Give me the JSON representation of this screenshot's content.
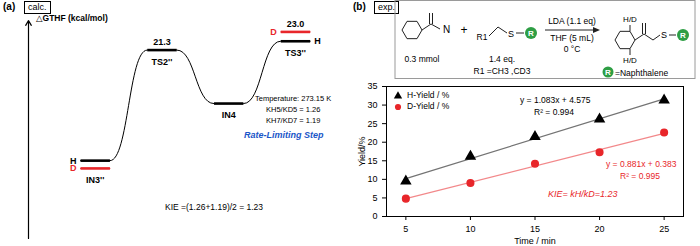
{
  "chart_data": [
    {
      "type": "energy",
      "title": "(a)",
      "subtitle": "calc.",
      "ylabel": "△GTHF (kcal/mol)",
      "categories": [
        "IN3''",
        "TS2''",
        "IN4",
        "TS3''"
      ],
      "series": [
        {
          "name": "H",
          "color": "#000000",
          "values": [
            0,
            21.3,
            11,
            23.0
          ],
          "value_labels": [
            null,
            "21.3",
            null,
            "23.0"
          ]
        },
        {
          "name": "D",
          "color": "#e8262a",
          "values": [
            -1.5,
            null,
            null,
            24.8
          ]
        }
      ],
      "ylim": [
        -15,
        27
      ],
      "tick_labels": false,
      "annotations": [
        {
          "text": "Temperature: 273.15 K",
          "color": "#000000"
        },
        {
          "text": "KH5/KD5 = 1.26",
          "color": "#000000"
        },
        {
          "text": "KH7/KD7 = 1.19",
          "color": "#000000"
        },
        {
          "text": "Rate-Limiting Step",
          "color": "#1a56c8"
        },
        {
          "text": "KIE =(1.26+1.19)/2 = 1.23",
          "color": "#000000"
        }
      ]
    },
    {
      "type": "scatter",
      "title": "(b)",
      "subtitle": "exp.",
      "xlabel": "Time / min",
      "ylabel": "Yield/%",
      "x": [
        5,
        10,
        15,
        20,
        25
      ],
      "series": [
        {
          "name": "H-Yield / %",
          "color": "#000000",
          "marker": "triangle",
          "values": [
            9.5,
            16.2,
            21.5,
            26.2,
            31.3
          ],
          "fit": {
            "equation": "y = 1.083x + 4.575",
            "r2": "R² = 0.994"
          }
        },
        {
          "name": "D-Yield / %",
          "color": "#e8262a",
          "marker": "circle",
          "values": [
            4.8,
            9.0,
            14.2,
            17.3,
            22.6
          ],
          "fit": {
            "equation": "y = 0.881x + 0.383",
            "r2": "R² = 0.995"
          }
        }
      ],
      "xlim": [
        3.5,
        26.5
      ],
      "xticks": [
        5,
        10,
        15,
        20,
        25
      ],
      "ylim": [
        0,
        35
      ],
      "yticks": [
        0,
        5,
        10,
        15,
        20,
        25,
        30,
        35
      ],
      "legend": "top-left",
      "grid": false,
      "annotations": [
        {
          "text": "KIE= kH/kD=1.23",
          "color": "#e8262a"
        }
      ]
    }
  ],
  "scheme": {
    "reactant1": {
      "atom": "N",
      "amount": "0.3 mmol"
    },
    "plus": "+",
    "reactant2": {
      "atoms": [
        "R1",
        "S",
        "R"
      ],
      "amount": "1.4 eq.",
      "note": "R1 =CH3 ,CD3"
    },
    "conditions": [
      "LDA (1.1 eq)",
      "THF (5 mL)",
      "0 °C"
    ],
    "product": {
      "atoms": [
        "H/D",
        "H/D",
        "S",
        "R"
      ]
    },
    "legend": {
      "symbol": "R",
      "text": "=Naphthalene"
    }
  }
}
